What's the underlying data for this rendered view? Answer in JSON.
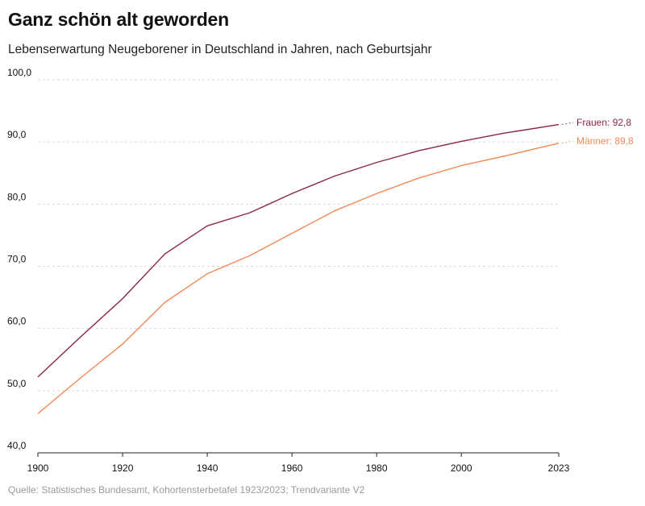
{
  "header": {
    "title": "Ganz schön alt geworden",
    "subtitle": "Lebenserwartung Neugeborener in Deutschland in Jahren, nach Geburtsjahr"
  },
  "footer": {
    "source": "Quelle: Statistisches Bundesamt, Kohortensterbetafel 1923/2023; Trendvariante V2"
  },
  "colors": {
    "frauen": "#8a2448",
    "maenner": "#f08a55",
    "grid": "#d9d9d9",
    "axis": "#222222"
  },
  "chart_data": {
    "type": "line",
    "title": "Ganz schön alt geworden",
    "subtitle": "Lebenserwartung Neugeborener in Deutschland in Jahren, nach Geburtsjahr",
    "xlabel": "",
    "ylabel": "",
    "xlim": [
      1900,
      2023
    ],
    "ylim": [
      40,
      100
    ],
    "x_ticks": [
      1900,
      1920,
      1940,
      1960,
      1980,
      2000,
      2023
    ],
    "x_tick_labels": [
      "1900",
      "1920",
      "1940",
      "1960",
      "1980",
      "2000",
      "2023"
    ],
    "y_ticks": [
      40,
      50,
      60,
      70,
      80,
      90,
      100
    ],
    "y_tick_labels": [
      "40,0",
      "50,0",
      "60,0",
      "70,0",
      "80,0",
      "90,0",
      "100,0"
    ],
    "grid": true,
    "grid_style": "dashed-horizontal",
    "legend": "end-of-line-labels",
    "series": [
      {
        "name": "Frauen",
        "end_label": "Frauen: 92,8",
        "color": "#8a2448",
        "x": [
          1900,
          1910,
          1920,
          1930,
          1940,
          1950,
          1960,
          1970,
          1980,
          1990,
          2000,
          2010,
          2023
        ],
        "values": [
          52.2,
          58.6,
          64.8,
          72.0,
          76.5,
          78.6,
          81.7,
          84.5,
          86.7,
          88.6,
          90.1,
          91.4,
          92.8
        ]
      },
      {
        "name": "Männer",
        "end_label": "Männer: 89,8",
        "color": "#f08a55",
        "x": [
          1900,
          1910,
          1920,
          1930,
          1940,
          1950,
          1960,
          1970,
          1980,
          1990,
          2000,
          2010,
          2023
        ],
        "values": [
          46.3,
          52.0,
          57.5,
          64.2,
          68.8,
          71.7,
          75.3,
          78.9,
          81.7,
          84.2,
          86.2,
          87.7,
          89.8
        ]
      }
    ]
  }
}
